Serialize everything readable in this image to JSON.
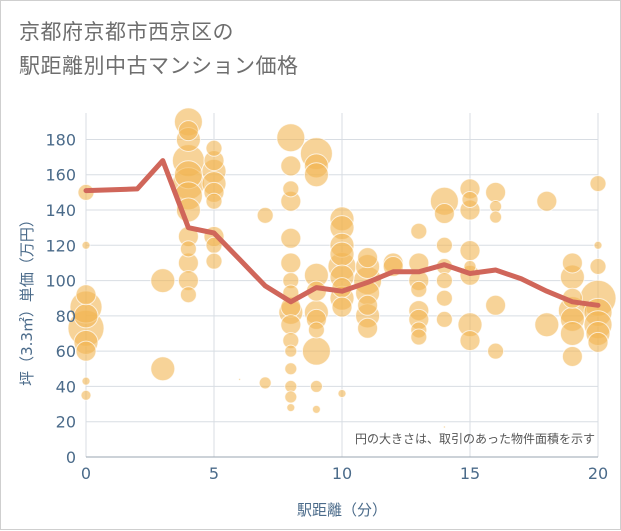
{
  "page": {
    "title_line1": "京都府京都市西京区の",
    "title_line2": "駅距離別中古マンション価格"
  },
  "chart_data": {
    "type": "scatter",
    "title": "京都府京都市西京区の駅距離別中古マンション価格",
    "xlabel": "駅距離（分）",
    "ylabel": "坪（3.3㎡）単価（万円）",
    "xlim": [
      0,
      20
    ],
    "ylim": [
      0,
      195
    ],
    "xticks": [
      0,
      5,
      10,
      15,
      20
    ],
    "yticks": [
      0,
      20,
      40,
      60,
      80,
      100,
      120,
      140,
      160,
      180
    ],
    "grid": true,
    "note": "円の大きさは、取引のあった物件面積を示す",
    "colors": {
      "bubble": "#f2b554",
      "line": "#d0665a",
      "axis_text": "#4b6b8a",
      "grid": "#d8dde3"
    },
    "series": [
      {
        "kind": "bubble",
        "points": [
          {
            "x": 0,
            "y": 150,
            "r": 8
          },
          {
            "x": 0,
            "y": 120,
            "r": 4
          },
          {
            "x": 0,
            "y": 92,
            "r": 10
          },
          {
            "x": 0,
            "y": 85,
            "r": 16
          },
          {
            "x": 0,
            "y": 80,
            "r": 12
          },
          {
            "x": 0,
            "y": 73,
            "r": 18
          },
          {
            "x": 0,
            "y": 65,
            "r": 12
          },
          {
            "x": 0,
            "y": 60,
            "r": 10
          },
          {
            "x": 0,
            "y": 43,
            "r": 4
          },
          {
            "x": 0,
            "y": 35,
            "r": 5
          },
          {
            "x": 3,
            "y": 100,
            "r": 12
          },
          {
            "x": 3,
            "y": 50,
            "r": 12
          },
          {
            "x": 4,
            "y": 190,
            "r": 14
          },
          {
            "x": 4,
            "y": 185,
            "r": 10
          },
          {
            "x": 4,
            "y": 180,
            "r": 12
          },
          {
            "x": 4,
            "y": 168,
            "r": 16
          },
          {
            "x": 4,
            "y": 160,
            "r": 14
          },
          {
            "x": 4,
            "y": 155,
            "r": 16
          },
          {
            "x": 4,
            "y": 148,
            "r": 14
          },
          {
            "x": 4,
            "y": 140,
            "r": 12
          },
          {
            "x": 4,
            "y": 125,
            "r": 10
          },
          {
            "x": 4,
            "y": 118,
            "r": 8
          },
          {
            "x": 4,
            "y": 110,
            "r": 10
          },
          {
            "x": 4,
            "y": 100,
            "r": 10
          },
          {
            "x": 4,
            "y": 92,
            "r": 8
          },
          {
            "x": 5,
            "y": 175,
            "r": 8
          },
          {
            "x": 5,
            "y": 168,
            "r": 10
          },
          {
            "x": 5,
            "y": 162,
            "r": 12
          },
          {
            "x": 5,
            "y": 155,
            "r": 12
          },
          {
            "x": 5,
            "y": 150,
            "r": 10
          },
          {
            "x": 5,
            "y": 145,
            "r": 8
          },
          {
            "x": 5,
            "y": 125,
            "r": 10
          },
          {
            "x": 5,
            "y": 120,
            "r": 8
          },
          {
            "x": 5,
            "y": 111,
            "r": 8
          },
          {
            "x": 6,
            "y": 44,
            "r": 1
          },
          {
            "x": 7,
            "y": 137,
            "r": 8
          },
          {
            "x": 7,
            "y": 42,
            "r": 6
          },
          {
            "x": 8,
            "y": 181,
            "r": 14
          },
          {
            "x": 8,
            "y": 165,
            "r": 10
          },
          {
            "x": 8,
            "y": 152,
            "r": 8
          },
          {
            "x": 8,
            "y": 145,
            "r": 10
          },
          {
            "x": 8,
            "y": 124,
            "r": 10
          },
          {
            "x": 8,
            "y": 110,
            "r": 10
          },
          {
            "x": 8,
            "y": 100,
            "r": 8
          },
          {
            "x": 8,
            "y": 93,
            "r": 8
          },
          {
            "x": 8,
            "y": 85,
            "r": 10
          },
          {
            "x": 8,
            "y": 82,
            "r": 12
          },
          {
            "x": 8,
            "y": 75,
            "r": 10
          },
          {
            "x": 8,
            "y": 66,
            "r": 8
          },
          {
            "x": 8,
            "y": 60,
            "r": 6
          },
          {
            "x": 8,
            "y": 50,
            "r": 6
          },
          {
            "x": 8,
            "y": 40,
            "r": 6
          },
          {
            "x": 8,
            "y": 34,
            "r": 6
          },
          {
            "x": 8,
            "y": 28,
            "r": 4
          },
          {
            "x": 9,
            "y": 172,
            "r": 16
          },
          {
            "x": 9,
            "y": 165,
            "r": 12
          },
          {
            "x": 9,
            "y": 160,
            "r": 12
          },
          {
            "x": 9,
            "y": 103,
            "r": 12
          },
          {
            "x": 9,
            "y": 94,
            "r": 10
          },
          {
            "x": 9,
            "y": 82,
            "r": 12
          },
          {
            "x": 9,
            "y": 78,
            "r": 10
          },
          {
            "x": 9,
            "y": 72,
            "r": 8
          },
          {
            "x": 9,
            "y": 60,
            "r": 14
          },
          {
            "x": 9,
            "y": 40,
            "r": 6
          },
          {
            "x": 9,
            "y": 27,
            "r": 4
          },
          {
            "x": 10,
            "y": 135,
            "r": 12
          },
          {
            "x": 10,
            "y": 130,
            "r": 12
          },
          {
            "x": 10,
            "y": 120,
            "r": 12
          },
          {
            "x": 10,
            "y": 115,
            "r": 12
          },
          {
            "x": 10,
            "y": 108,
            "r": 14
          },
          {
            "x": 10,
            "y": 102,
            "r": 12
          },
          {
            "x": 10,
            "y": 96,
            "r": 10
          },
          {
            "x": 10,
            "y": 90,
            "r": 12
          },
          {
            "x": 10,
            "y": 85,
            "r": 10
          },
          {
            "x": 10,
            "y": 36,
            "r": 4
          },
          {
            "x": 11,
            "y": 113,
            "r": 10
          },
          {
            "x": 11,
            "y": 108,
            "r": 12
          },
          {
            "x": 11,
            "y": 100,
            "r": 14
          },
          {
            "x": 11,
            "y": 93,
            "r": 12
          },
          {
            "x": 11,
            "y": 86,
            "r": 10
          },
          {
            "x": 11,
            "y": 80,
            "r": 12
          },
          {
            "x": 11,
            "y": 73,
            "r": 10
          },
          {
            "x": 12,
            "y": 110,
            "r": 10
          },
          {
            "x": 12,
            "y": 108,
            "r": 10
          },
          {
            "x": 13,
            "y": 128,
            "r": 8
          },
          {
            "x": 13,
            "y": 110,
            "r": 10
          },
          {
            "x": 13,
            "y": 100,
            "r": 10
          },
          {
            "x": 13,
            "y": 95,
            "r": 8
          },
          {
            "x": 13,
            "y": 83,
            "r": 10
          },
          {
            "x": 13,
            "y": 78,
            "r": 10
          },
          {
            "x": 13,
            "y": 72,
            "r": 8
          },
          {
            "x": 13,
            "y": 68,
            "r": 8
          },
          {
            "x": 14,
            "y": 145,
            "r": 14
          },
          {
            "x": 14,
            "y": 138,
            "r": 10
          },
          {
            "x": 14,
            "y": 120,
            "r": 8
          },
          {
            "x": 14,
            "y": 108,
            "r": 8
          },
          {
            "x": 14,
            "y": 100,
            "r": 8
          },
          {
            "x": 14,
            "y": 90,
            "r": 8
          },
          {
            "x": 14,
            "y": 78,
            "r": 8
          },
          {
            "x": 14,
            "y": 17,
            "r": 1
          },
          {
            "x": 15,
            "y": 152,
            "r": 10
          },
          {
            "x": 15,
            "y": 146,
            "r": 8
          },
          {
            "x": 15,
            "y": 140,
            "r": 10
          },
          {
            "x": 15,
            "y": 117,
            "r": 10
          },
          {
            "x": 15,
            "y": 108,
            "r": 6
          },
          {
            "x": 15,
            "y": 103,
            "r": 10
          },
          {
            "x": 15,
            "y": 75,
            "r": 12
          },
          {
            "x": 15,
            "y": 66,
            "r": 10
          },
          {
            "x": 16,
            "y": 150,
            "r": 10
          },
          {
            "x": 16,
            "y": 142,
            "r": 6
          },
          {
            "x": 16,
            "y": 136,
            "r": 6
          },
          {
            "x": 16,
            "y": 86,
            "r": 10
          },
          {
            "x": 16,
            "y": 60,
            "r": 8
          },
          {
            "x": 18,
            "y": 145,
            "r": 10
          },
          {
            "x": 18,
            "y": 75,
            "r": 12
          },
          {
            "x": 19,
            "y": 110,
            "r": 10
          },
          {
            "x": 19,
            "y": 102,
            "r": 12
          },
          {
            "x": 19,
            "y": 90,
            "r": 10
          },
          {
            "x": 19,
            "y": 83,
            "r": 14
          },
          {
            "x": 19,
            "y": 78,
            "r": 12
          },
          {
            "x": 19,
            "y": 70,
            "r": 12
          },
          {
            "x": 19,
            "y": 57,
            "r": 10
          },
          {
            "x": 20,
            "y": 155,
            "r": 8
          },
          {
            "x": 20,
            "y": 120,
            "r": 4
          },
          {
            "x": 20,
            "y": 108,
            "r": 8
          },
          {
            "x": 20,
            "y": 90,
            "r": 18
          },
          {
            "x": 20,
            "y": 82,
            "r": 14
          },
          {
            "x": 20,
            "y": 75,
            "r": 14
          },
          {
            "x": 20,
            "y": 70,
            "r": 12
          },
          {
            "x": 20,
            "y": 65,
            "r": 10
          }
        ]
      },
      {
        "kind": "line",
        "points": [
          {
            "x": 0,
            "y": 151
          },
          {
            "x": 2,
            "y": 152
          },
          {
            "x": 3,
            "y": 168
          },
          {
            "x": 4,
            "y": 130
          },
          {
            "x": 5,
            "y": 127
          },
          {
            "x": 6,
            "y": 112
          },
          {
            "x": 7,
            "y": 97
          },
          {
            "x": 8,
            "y": 88
          },
          {
            "x": 9,
            "y": 96
          },
          {
            "x": 10,
            "y": 94
          },
          {
            "x": 11,
            "y": 99
          },
          {
            "x": 12,
            "y": 105
          },
          {
            "x": 13,
            "y": 105
          },
          {
            "x": 14,
            "y": 109
          },
          {
            "x": 15,
            "y": 104
          },
          {
            "x": 16,
            "y": 106
          },
          {
            "x": 17,
            "y": 101
          },
          {
            "x": 18,
            "y": 94
          },
          {
            "x": 19,
            "y": 88
          },
          {
            "x": 20,
            "y": 86
          }
        ]
      }
    ]
  }
}
